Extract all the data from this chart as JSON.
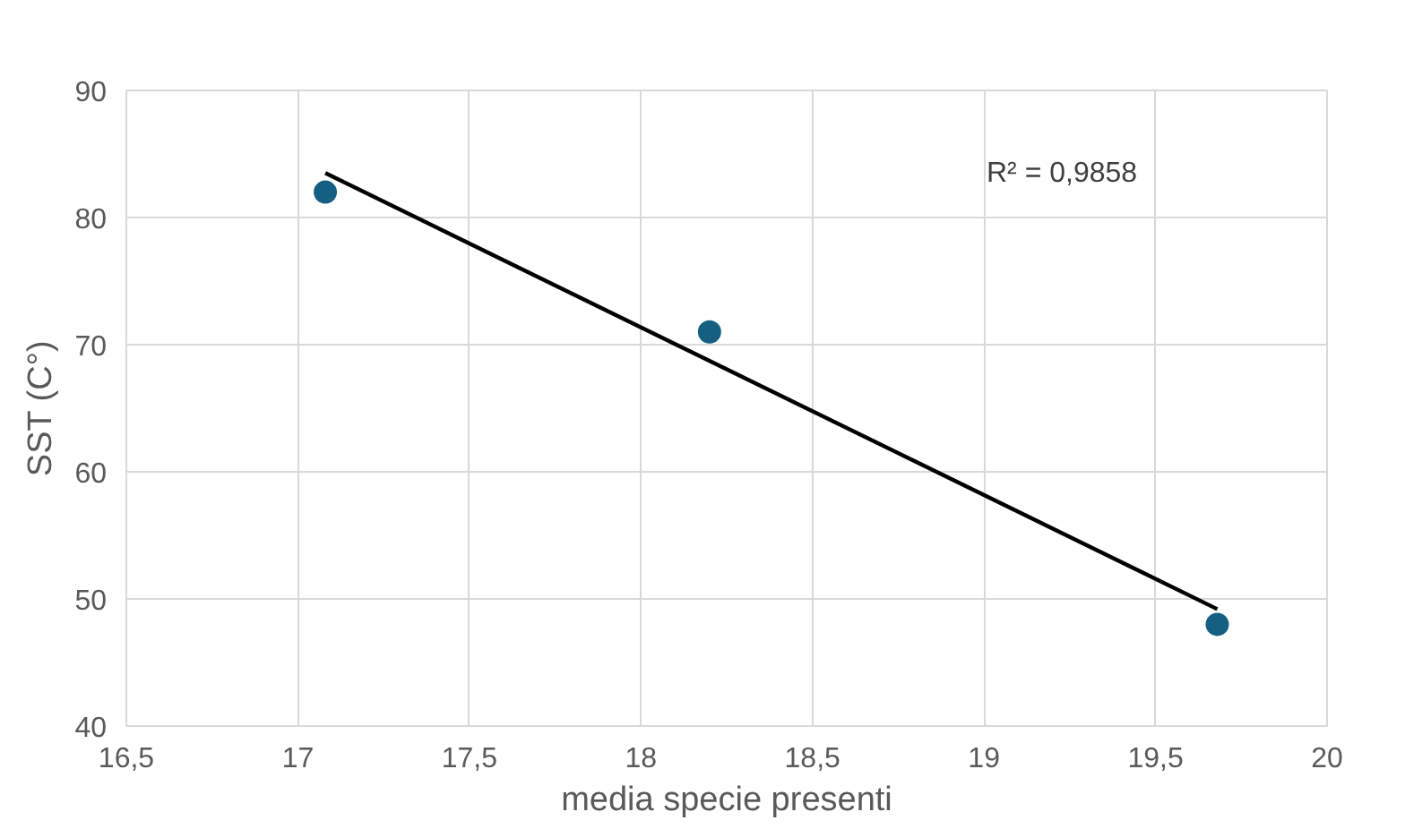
{
  "chart_data": {
    "type": "scatter",
    "xlabel": "media specie presenti",
    "ylabel": "SST (C°)",
    "x": [
      17.08,
      18.2,
      19.68
    ],
    "series": [
      {
        "color": "#156082",
        "marker": "circle",
        "values": [
          82,
          71,
          48
        ]
      },
      {
        "type": "line",
        "color": "#000000",
        "x": [
          17.08,
          19.68
        ],
        "values": [
          83.5,
          49.2
        ]
      }
    ],
    "xlim": [
      16.5,
      20
    ],
    "xticks": [
      {
        "value": 16.5,
        "label": "16,5"
      },
      17,
      {
        "value": 17.5,
        "label": "17,5"
      },
      18,
      {
        "value": 18.5,
        "label": "18,5"
      },
      19,
      {
        "value": 19.5,
        "label": "19,5"
      },
      20
    ],
    "ylim": [
      40,
      90
    ],
    "yticks": [
      40,
      50,
      60,
      70,
      80,
      90
    ],
    "annotations": [
      "R² = 0,9858"
    ],
    "grid": true,
    "line_style": "solid"
  }
}
